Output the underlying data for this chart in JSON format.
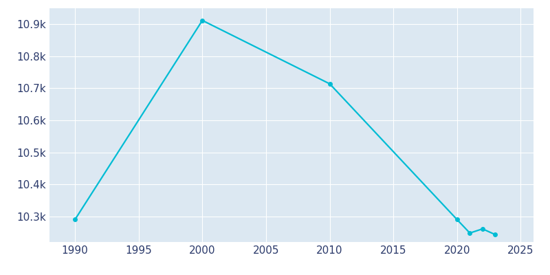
{
  "years": [
    1990,
    2000,
    2010,
    2020,
    2021,
    2022,
    2023
  ],
  "population": [
    10290,
    10912,
    10714,
    10290,
    10248,
    10261,
    10243
  ],
  "line_color": "#00BCD4",
  "marker": "o",
  "marker_size": 4,
  "plot_bg_color": "#dce8f2",
  "fig_bg_color": "#ffffff",
  "grid_color": "#ffffff",
  "xlim": [
    1988,
    2026
  ],
  "ylim": [
    10220,
    10950
  ],
  "yticks": [
    10300,
    10400,
    10500,
    10600,
    10700,
    10800,
    10900
  ],
  "xticks": [
    1990,
    1995,
    2000,
    2005,
    2010,
    2015,
    2020,
    2025
  ],
  "tick_color": "#2b3a6b",
  "label_fontsize": 11,
  "linewidth": 1.6
}
